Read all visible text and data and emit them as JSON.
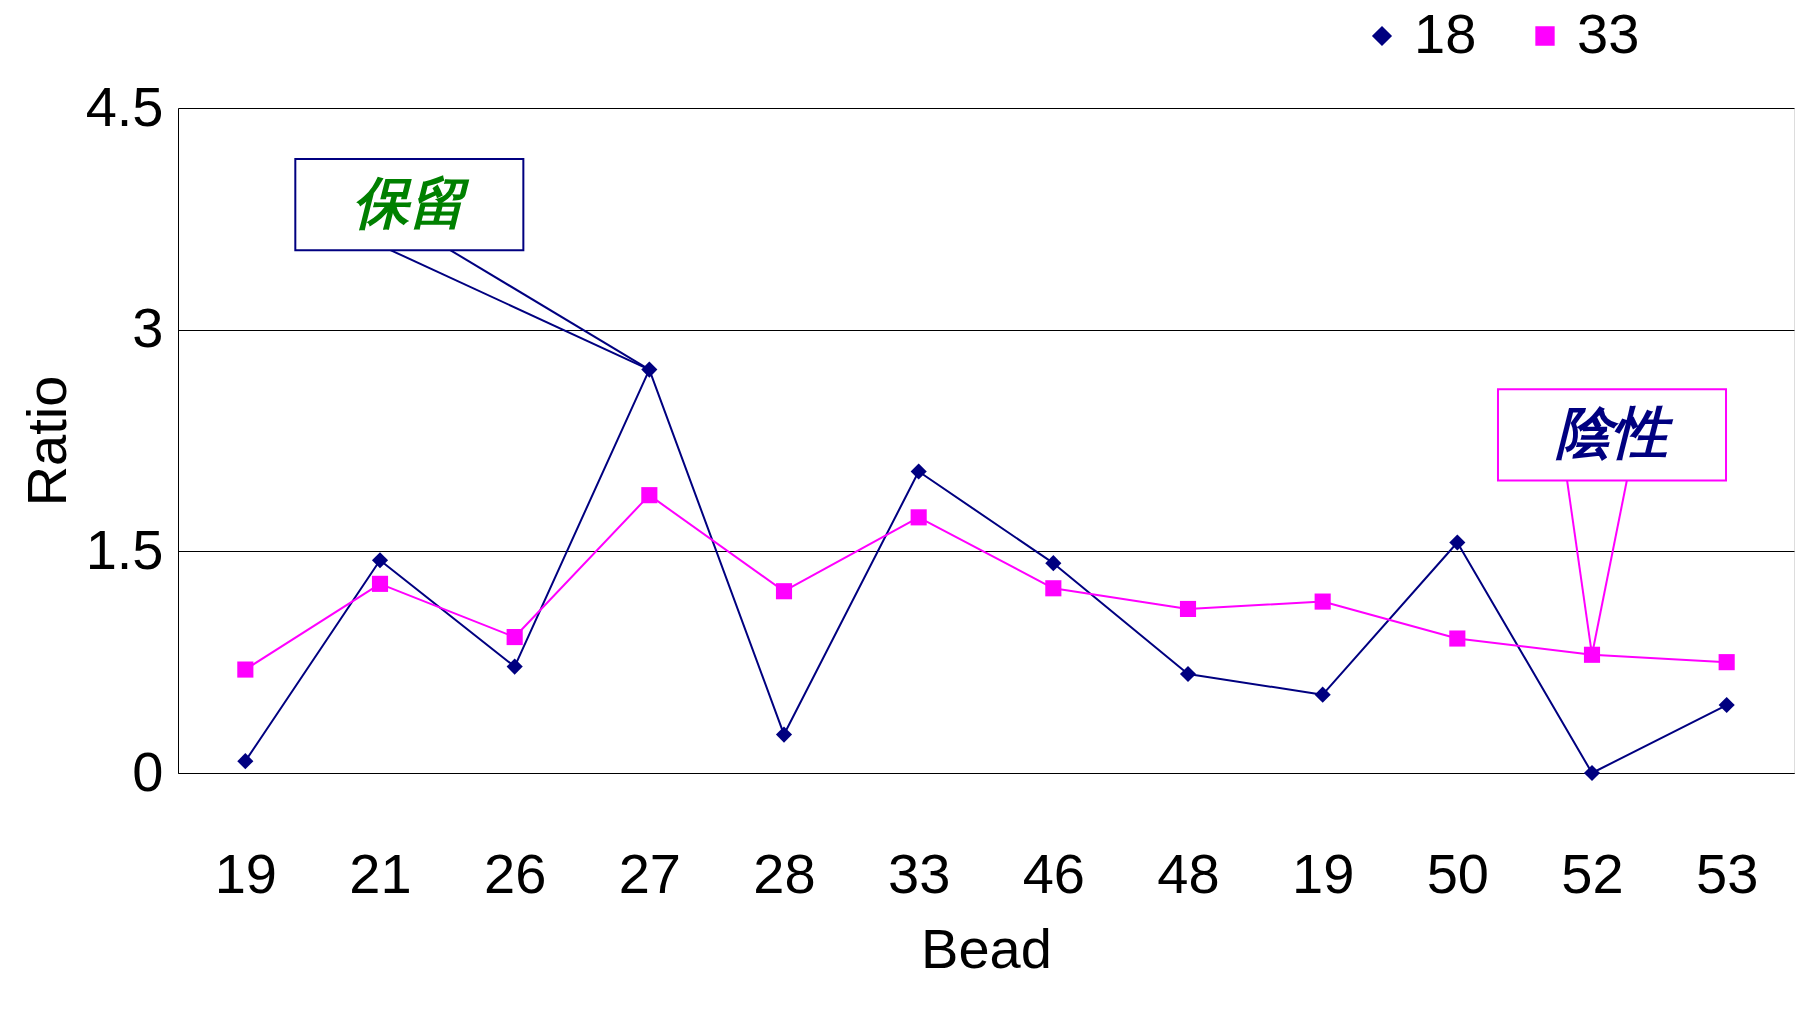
{
  "chart_data": {
    "type": "line",
    "xlabel": "Bead",
    "ylabel": "Ratio",
    "categories": [
      "19",
      "21",
      "26",
      "27",
      "28",
      "33",
      "46",
      "48",
      "19",
      "50",
      "52",
      "53"
    ],
    "series": [
      {
        "name": "18",
        "color": "#000080",
        "marker": "diamond",
        "values": [
          0.08,
          1.44,
          0.72,
          2.73,
          0.26,
          2.04,
          1.42,
          0.67,
          0.53,
          1.56,
          0.0,
          0.46
        ]
      },
      {
        "name": "33",
        "color": "#ff00ff",
        "marker": "square",
        "values": [
          0.7,
          1.28,
          0.92,
          1.88,
          1.23,
          1.73,
          1.25,
          1.11,
          1.16,
          0.91,
          0.8,
          0.75
        ]
      }
    ],
    "ylim": [
      0,
      4.5
    ],
    "yticks": [
      {
        "value": 0,
        "label": "0"
      },
      1.5,
      {
        "value": 3,
        "label": "3"
      },
      4.5
    ],
    "grid": "y",
    "legend": "top right",
    "annotations": [
      {
        "text": "保留",
        "x": "27",
        "y": 2.73
      },
      {
        "text": "陰性",
        "x": "52",
        "y": 0.8
      }
    ]
  }
}
